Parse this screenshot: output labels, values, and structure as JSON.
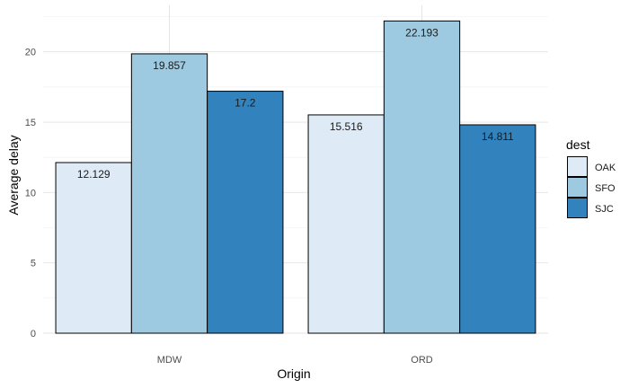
{
  "chart_data": {
    "type": "bar",
    "xlabel": "Origin",
    "ylabel": "Average delay",
    "categories": [
      "MDW",
      "ORD"
    ],
    "series": [
      {
        "name": "OAK",
        "values": [
          12.129,
          15.516
        ],
        "labels": [
          "12.129",
          "15.516"
        ],
        "color": "#deebf7"
      },
      {
        "name": "SFO",
        "values": [
          19.857,
          22.193
        ],
        "labels": [
          "19.857",
          "22.193"
        ],
        "color": "#9ecae1"
      },
      {
        "name": "SJC",
        "values": [
          17.2,
          14.811
        ],
        "labels": [
          "17.2",
          "14.811"
        ],
        "color": "#3182bd"
      }
    ],
    "ylim": [
      0,
      23.3
    ],
    "yticks": [
      0,
      5,
      10,
      15,
      20
    ],
    "ytick_labels": [
      "0",
      "5",
      "10",
      "15",
      "20"
    ],
    "grid": true,
    "legend": {
      "title": "dest",
      "position": "right"
    }
  }
}
